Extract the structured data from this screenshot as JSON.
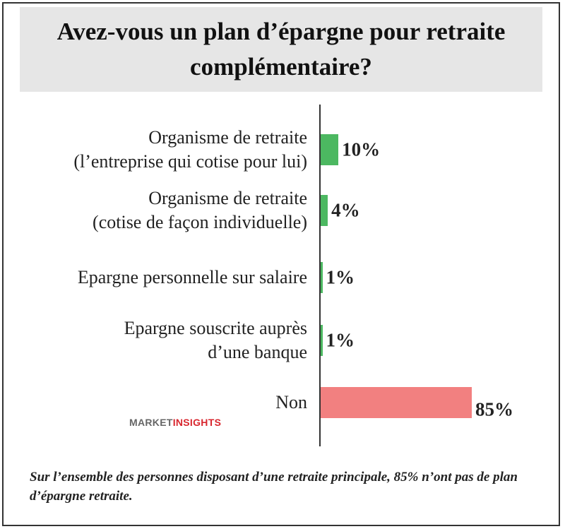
{
  "chart_data": {
    "type": "hbar",
    "title": "Avez-vous un plan d’épargne pour retraite complémentaire?",
    "categories": [
      "Organisme de retraite\n(l’entreprise qui cotise pour lui)",
      "Organisme de retraite\n(cotise de façon individuelle)",
      "Epargne personnelle sur salaire",
      "Epargne souscrite auprès\nd’une banque",
      "Non"
    ],
    "values": [
      10,
      4,
      1,
      1,
      85
    ],
    "value_labels": [
      "10%",
      "4%",
      "1%",
      "1%",
      "85%"
    ],
    "colors": [
      "#4cb861",
      "#4cb861",
      "#4cb861",
      "#4cb861",
      "#f28080"
    ],
    "brand": [
      "MARKET",
      "INSIGHTS"
    ],
    "note": "Sur l’ensemble des personnes disposant d’une retraite principale, 85% n’ont pas de plan d’épargne retraite."
  }
}
